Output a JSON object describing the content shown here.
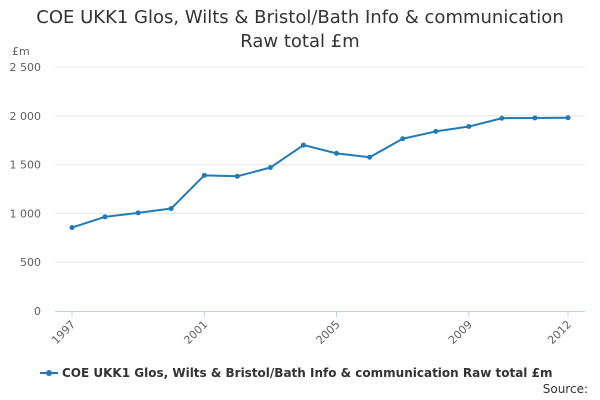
{
  "chart_data": {
    "type": "line",
    "title_line1": "COE UKK1 Glos, Wilts & Bristol/Bath Info & communication",
    "title_line2": "Raw total £m",
    "y_unit": "£m",
    "x": [
      1997,
      1998,
      1999,
      2000,
      2001,
      2002,
      2003,
      2004,
      2005,
      2006,
      2007,
      2008,
      2009,
      2010,
      2011,
      2012
    ],
    "x_tick_labels": [
      "1997",
      "2001",
      "2005",
      "2009",
      "2012"
    ],
    "x_tick_values": [
      1997,
      2001,
      2005,
      2009,
      2012
    ],
    "series": [
      {
        "name": "COE UKK1 Glos, Wilts & Bristol/Bath Info & communication Raw total £m",
        "values": [
          855,
          965,
          1005,
          1050,
          1390,
          1380,
          1470,
          1700,
          1615,
          1575,
          1765,
          1840,
          1890,
          1975,
          1978,
          1980
        ],
        "color": "#1f7ab8"
      }
    ],
    "ylim": [
      0,
      2500
    ],
    "y_ticks": [
      0,
      500,
      1000,
      1500,
      2000,
      2500
    ],
    "y_tick_labels": [
      "0",
      "500",
      "1 000",
      "1 500",
      "2 000",
      "2 500"
    ],
    "grid": true,
    "legend_position": "bottom-left"
  },
  "source_label": "Source:"
}
